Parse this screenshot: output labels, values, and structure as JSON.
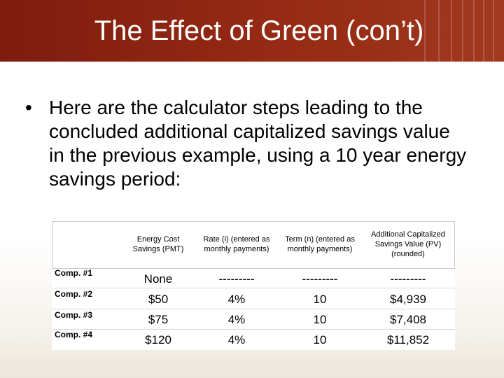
{
  "slide": {
    "title": "The Effect of Green (con’t)",
    "bullet": "•",
    "body": "Here are the calculator steps leading to the concluded additional capitalized savings value in the previous example, using a 10 year energy savings period:"
  },
  "table": {
    "headers": [
      "Energy Cost Savings (PMT)",
      "Rate (i) (entered as monthly payments)",
      "Term (n) (entered as monthly payments)",
      "Additional Capitalized Savings Value (PV) (rounded)"
    ],
    "rows": [
      {
        "label": "Comp. #1",
        "cells": [
          "None",
          "---------",
          "---------",
          "---------"
        ]
      },
      {
        "label": "Comp. #2",
        "cells": [
          "$50",
          "4%",
          "10",
          "$4,939"
        ]
      },
      {
        "label": "Comp. #3",
        "cells": [
          "$75",
          "4%",
          "10",
          "$7,408"
        ]
      },
      {
        "label": "Comp. #4",
        "cells": [
          "$120",
          "4%",
          "10",
          "$11,852"
        ]
      }
    ]
  },
  "colors": {
    "title_bar": "#962a14",
    "title_text": "#ffffff"
  }
}
